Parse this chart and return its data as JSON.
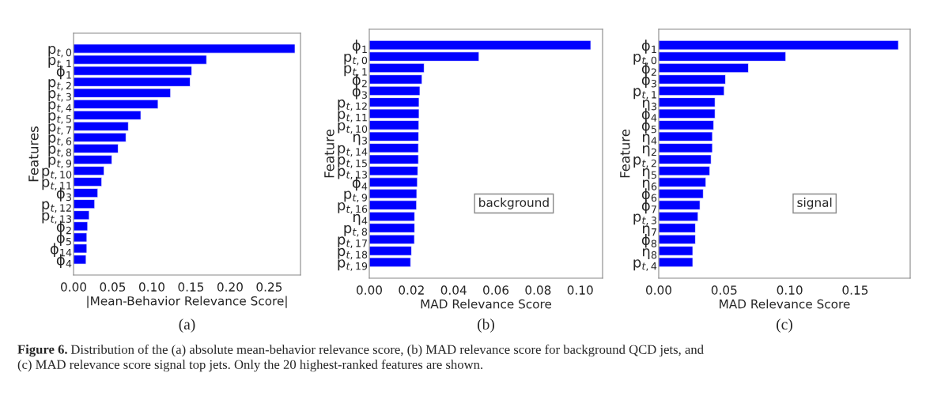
{
  "chart_data": [
    {
      "type": "bar",
      "orientation": "horizontal",
      "xlabel": "|Mean-Behavior Relevance Score|",
      "ylabel": "Features",
      "color": "#0000ff",
      "grid": false,
      "legend": false,
      "categories": [
        "p$_{t,0}$",
        "p$_{t,1}$",
        "ϕ$_{1}$",
        "p$_{t,2}$",
        "p$_{t,3}$",
        "p$_{t,4}$",
        "p$_{t,5}$",
        "p$_{t,7}$",
        "p$_{t,6}$",
        "p$_{t,8}$",
        "p$_{t,9}$",
        "p$_{t,10}$",
        "p$_{t,11}$",
        "ϕ$_{3}$",
        "p$_{t,12}$",
        "p$_{t,13}$",
        "ϕ$_{2}$",
        "ϕ$_{5}$",
        "ϕ$_{14}$",
        "ϕ$_{4}$"
      ],
      "values": [
        0.283,
        0.17,
        0.151,
        0.149,
        0.124,
        0.108,
        0.086,
        0.07,
        0.067,
        0.057,
        0.049,
        0.039,
        0.036,
        0.031,
        0.027,
        0.02,
        0.018,
        0.017,
        0.017,
        0.016
      ],
      "xlim": [
        0,
        0.29
      ],
      "xticks": [
        {
          "value": 0,
          "label": "0.00"
        },
        0.05,
        {
          "value": 0.1,
          "label": "0.10"
        },
        0.15,
        {
          "value": 0.2,
          "label": "0.20"
        },
        0.25
      ],
      "annotations": [
        "(a)"
      ]
    },
    {
      "type": "bar",
      "orientation": "horizontal",
      "xlabel": "MAD Relevance Score",
      "ylabel": "Feature",
      "color": "#0000ff",
      "grid": false,
      "legend": false,
      "categories": [
        "ϕ$_{1}$",
        "p$_{t,0}$",
        "p$_{t,1}$",
        "ϕ$_{2}$",
        "ϕ$_{3}$",
        "p$_{t,12}$",
        "p$_{t,11}$",
        "p$_{t,10}$",
        "η$_{3}$",
        "p$_{t,14}$",
        "p$_{t,15}$",
        "p$_{t,13}$",
        "ϕ$_{4}$",
        "p$_{t,9}$",
        "p$_{t,16}$",
        "η$_{4}$",
        "p$_{t,8}$",
        "p$_{t,17}$",
        "p$_{t,18}$",
        "p$_{t,19}$"
      ],
      "values": [
        0.105,
        0.052,
        0.026,
        0.025,
        0.024,
        0.0236,
        0.0236,
        0.0235,
        0.0234,
        0.0233,
        0.0233,
        0.023,
        0.0228,
        0.0225,
        0.0224,
        0.0215,
        0.0215,
        0.0214,
        0.02,
        0.0196
      ],
      "xlim": [
        0,
        0.1106
      ],
      "xticks": [
        {
          "value": 0,
          "label": "0.00"
        },
        0.02,
        0.04,
        0.06,
        0.08,
        {
          "value": 0.1,
          "label": "0.10"
        }
      ],
      "annotations": [
        "(b)",
        "background"
      ]
    },
    {
      "type": "bar",
      "orientation": "horizontal",
      "xlabel": "MAD Relevance Score",
      "ylabel": "Feature",
      "color": "#0000ff",
      "grid": false,
      "legend": false,
      "categories": [
        "ϕ$_{1}$",
        "p$_{t,0}$",
        "ϕ$_{2}$",
        "ϕ$_{3}$",
        "p$_{t,1}$",
        "η$_{3}$",
        "ϕ$_{4}$",
        "ϕ$_{5}$",
        "η$_{4}$",
        "η$_{2}$",
        "p$_{t,2}$",
        "η$_{5}$",
        "η$_{6}$",
        "ϕ$_{6}$",
        "ϕ$_{7}$",
        "p$_{t,3}$",
        "η$_{7}$",
        "ϕ$_{8}$",
        "η$_{8}$",
        "p$_{t,4}$"
      ],
      "values": [
        0.183,
        0.097,
        0.0685,
        0.051,
        0.05,
        0.043,
        0.043,
        0.042,
        0.041,
        0.041,
        0.04,
        0.039,
        0.036,
        0.034,
        0.0315,
        0.03,
        0.028,
        0.028,
        0.026,
        0.026
      ],
      "xlim": [
        0,
        0.192
      ],
      "xticks": [
        {
          "value": 0,
          "label": "0.00"
        },
        0.05,
        {
          "value": 0.1,
          "label": "0.10"
        },
        0.15
      ],
      "annotations": [
        "(c)",
        "signal"
      ]
    },
    {
      "type": "other",
      "annotations": [
        "Figure 6.",
        "Distribution of the (a) absolute mean-behavior relevance score, (b) MAD relevance score for background QCD jets, and",
        "(c) MAD relevance score signal top jets. Only the 20 highest-ranked features are shown."
      ]
    }
  ]
}
